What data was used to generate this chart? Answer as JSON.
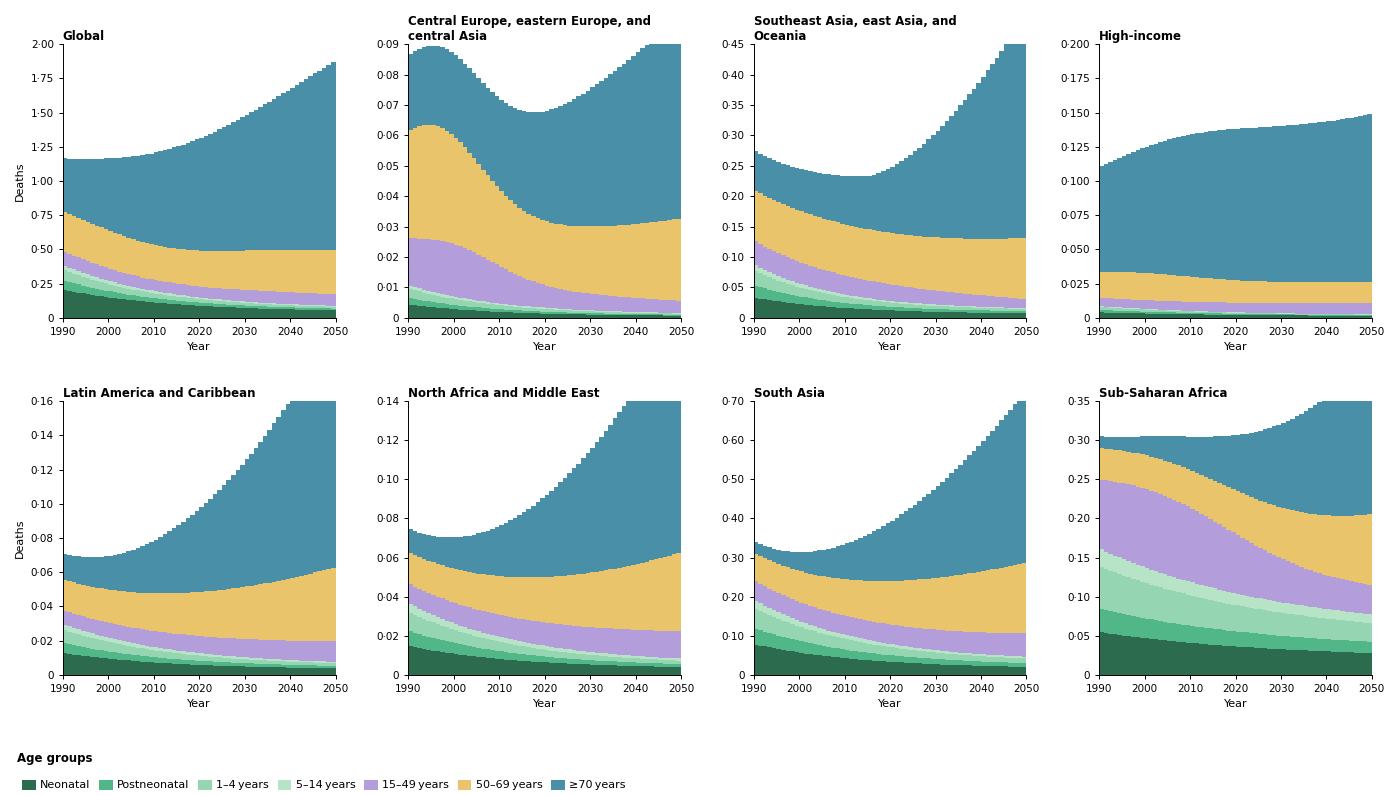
{
  "panels": [
    {
      "title": "Global",
      "ylim": [
        0,
        2.0
      ],
      "yticks": [
        0,
        0.25,
        0.5,
        0.75,
        1.0,
        1.25,
        1.5,
        1.75,
        2.0
      ],
      "ytick_labels": [
        "0",
        "0·25",
        "0·50",
        "0·75",
        "1·00",
        "1·25",
        "1·50",
        "1·75",
        "2·00"
      ]
    },
    {
      "title": "Central Europe, eastern Europe, and\ncentral Asia",
      "ylim": [
        0,
        0.09
      ],
      "yticks": [
        0,
        0.01,
        0.02,
        0.03,
        0.04,
        0.05,
        0.06,
        0.07,
        0.08,
        0.09
      ],
      "ytick_labels": [
        "0",
        "0·01",
        "0·02",
        "0·03",
        "0·04",
        "0·05",
        "0·06",
        "0·07",
        "0·08",
        "0·09"
      ]
    },
    {
      "title": "Southeast Asia, east Asia, and\nOceania",
      "ylim": [
        0,
        0.45
      ],
      "yticks": [
        0,
        0.05,
        0.1,
        0.15,
        0.2,
        0.25,
        0.3,
        0.35,
        0.4,
        0.45
      ],
      "ytick_labels": [
        "0",
        "0·05",
        "0·10",
        "0·15",
        "0·20",
        "0·25",
        "0·30",
        "0·35",
        "0·40",
        "0·45"
      ]
    },
    {
      "title": "High-income",
      "ylim": [
        0,
        0.2
      ],
      "yticks": [
        0,
        0.025,
        0.05,
        0.075,
        0.1,
        0.125,
        0.15,
        0.175,
        0.2
      ],
      "ytick_labels": [
        "0",
        "0·025",
        "0·050",
        "0·075",
        "0·100",
        "0·125",
        "0·150",
        "0·175",
        "0·200"
      ]
    },
    {
      "title": "Latin America and Caribbean",
      "ylim": [
        0,
        0.16
      ],
      "yticks": [
        0,
        0.02,
        0.04,
        0.06,
        0.08,
        0.1,
        0.12,
        0.14,
        0.16
      ],
      "ytick_labels": [
        "0",
        "0·02",
        "0·04",
        "0·06",
        "0·08",
        "0·10",
        "0·12",
        "0·14",
        "0·16"
      ]
    },
    {
      "title": "North Africa and Middle East",
      "ylim": [
        0,
        0.14
      ],
      "yticks": [
        0,
        0.02,
        0.04,
        0.06,
        0.08,
        0.1,
        0.12,
        0.14
      ],
      "ytick_labels": [
        "0",
        "0·02",
        "0·04",
        "0·06",
        "0·08",
        "0·10",
        "0·12",
        "0·14"
      ]
    },
    {
      "title": "South Asia",
      "ylim": [
        0,
        0.7
      ],
      "yticks": [
        0,
        0.1,
        0.2,
        0.3,
        0.4,
        0.5,
        0.6,
        0.7
      ],
      "ytick_labels": [
        "0",
        "0·10",
        "0·20",
        "0·30",
        "0·40",
        "0·50",
        "0·60",
        "0·70"
      ]
    },
    {
      "title": "Sub-Saharan Africa",
      "ylim": [
        0,
        0.35
      ],
      "yticks": [
        0,
        0.05,
        0.1,
        0.15,
        0.2,
        0.25,
        0.3,
        0.35
      ],
      "ytick_labels": [
        "0",
        "0·05",
        "0·10",
        "0·15",
        "0·20",
        "0·25",
        "0·30",
        "0·35"
      ]
    }
  ],
  "colors": {
    "Neonatal": "#2d6b4e",
    "Postneonatal": "#52b788",
    "1-4 years": "#95d5b2",
    "5-14 years": "#b7e4c7",
    "15-49 years": "#b39ddb",
    "50-69 years": "#e9c46a",
    ">=70 years": "#4a8fa8"
  },
  "age_groups": [
    "Neonatal",
    "Postneonatal",
    "1-4 years",
    "5-14 years",
    "15-49 years",
    "50-69 years",
    ">=70 years"
  ],
  "legend_labels": [
    "Neonatal",
    "Postneonatal",
    "1–4 years",
    "5–14 years",
    "15–49 years",
    "50–69 years",
    "≥70 years"
  ],
  "xlabel": "Year",
  "ylabel": "Deaths"
}
